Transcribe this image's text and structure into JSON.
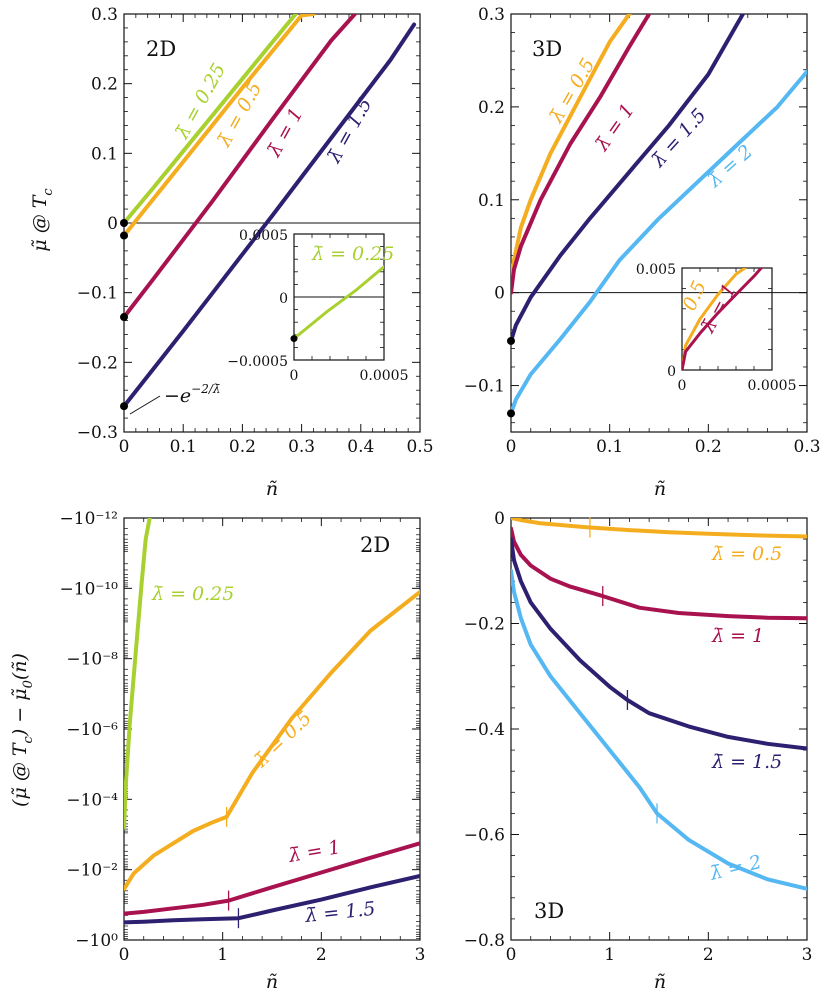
{
  "colors": {
    "lambda_0.25": "#a8d130",
    "lambda_0.5": "#f5ad20",
    "lambda_1": "#a8124f",
    "lambda_1.5": "#2e2070",
    "lambda_2": "#55b8f2",
    "axis": "#111111"
  },
  "chart_data": [
    {
      "type": "line",
      "panel": "top-left",
      "dimension_label": "2D",
      "xlabel": "ñ",
      "ylabel": "μ̃ @ T_c",
      "xlim": [
        0,
        0.5
      ],
      "ylim": [
        -0.3,
        0.3
      ],
      "xticks": [
        0,
        0.1,
        0.2,
        0.3,
        0.4,
        0.5
      ],
      "xtick_labels": [
        "0",
        "0.1",
        "0.2",
        "0.3",
        "0.4",
        "0.5"
      ],
      "yticks": [
        -0.3,
        -0.2,
        -0.1,
        0,
        0.1,
        0.2,
        0.3
      ],
      "ytick_labels": [
        "−0.3",
        "−0.2",
        "−0.1",
        "0",
        "0.1",
        "0.2",
        "0.3"
      ],
      "zero_line": true,
      "annotation": "−e^{−2/λ̄}",
      "series": [
        {
          "name": "λ̄ = 0.25",
          "color_key": "lambda_0.25",
          "x": [
            0,
            0.05,
            0.1,
            0.15,
            0.2,
            0.25,
            0.29
          ],
          "y": [
            0.0,
            0.051,
            0.103,
            0.155,
            0.207,
            0.259,
            0.3
          ],
          "start_dot": true
        },
        {
          "name": "λ̄ = 0.5",
          "color_key": "lambda_0.5",
          "x": [
            0,
            0.05,
            0.1,
            0.15,
            0.2,
            0.25,
            0.3,
            0.32
          ],
          "y": [
            -0.018,
            0.035,
            0.088,
            0.141,
            0.194,
            0.246,
            0.298,
            0.3
          ],
          "start_dot": true
        },
        {
          "name": "λ̄ = 1",
          "color_key": "lambda_1",
          "x": [
            0,
            0.05,
            0.1,
            0.15,
            0.2,
            0.25,
            0.3,
            0.35,
            0.39
          ],
          "y": [
            -0.135,
            -0.08,
            -0.024,
            0.032,
            0.09,
            0.148,
            0.205,
            0.262,
            0.3
          ],
          "start_dot": true
        },
        {
          "name": "λ̄ = 1.5",
          "color_key": "lambda_1.5",
          "x": [
            0,
            0.05,
            0.1,
            0.15,
            0.2,
            0.25,
            0.3,
            0.35,
            0.4,
            0.45,
            0.49
          ],
          "y": [
            -0.263,
            -0.209,
            -0.155,
            -0.1,
            -0.045,
            0.01,
            0.066,
            0.122,
            0.178,
            0.234,
            0.285
          ],
          "start_dot": true
        }
      ],
      "inset": {
        "xlim": [
          0,
          0.0005
        ],
        "ylim": [
          -0.0005,
          0.0005
        ],
        "xtick_labels": [
          "0",
          "0.0005"
        ],
        "ytick_labels": [
          "−0.0005",
          "0",
          "0.0005"
        ],
        "series": [
          {
            "name": "λ̄ = 0.25",
            "color_key": "lambda_0.25",
            "x": [
              0,
              0.00018,
              0.00035,
              0.0005
            ],
            "y": [
              -0.00033,
              -0.00012,
              6e-05,
              0.00024
            ],
            "start_dot": true
          }
        ]
      }
    },
    {
      "type": "line",
      "panel": "top-right",
      "dimension_label": "3D",
      "xlabel": "ñ",
      "ylabel": "",
      "xlim": [
        0,
        0.3
      ],
      "ylim": [
        -0.15,
        0.3
      ],
      "xticks": [
        0,
        0.1,
        0.2,
        0.3
      ],
      "xtick_labels": [
        "0",
        "0.1",
        "0.2",
        "0.3"
      ],
      "yticks": [
        -0.1,
        0,
        0.1,
        0.2,
        0.3
      ],
      "ytick_labels": [
        "−0.1",
        "0",
        "0.1",
        "0.2",
        "0.3"
      ],
      "zero_line": true,
      "series": [
        {
          "name": "λ̄ = 0.5",
          "color_key": "lambda_0.5",
          "x": [
            0,
            0.002,
            0.01,
            0.02,
            0.04,
            0.06,
            0.08,
            0.1,
            0.12
          ],
          "y": [
            0.0,
            0.03,
            0.07,
            0.1,
            0.15,
            0.19,
            0.23,
            0.27,
            0.3
          ],
          "start_dot": false
        },
        {
          "name": "λ̄ = 1",
          "color_key": "lambda_1",
          "x": [
            0,
            0.003,
            0.01,
            0.03,
            0.06,
            0.09,
            0.12,
            0.14
          ],
          "y": [
            0.0,
            0.025,
            0.05,
            0.1,
            0.16,
            0.21,
            0.265,
            0.3
          ],
          "start_dot": false
        },
        {
          "name": "λ̄ = 1.5",
          "color_key": "lambda_1.5",
          "x": [
            0,
            0.005,
            0.02,
            0.05,
            0.08,
            0.12,
            0.16,
            0.2,
            0.235
          ],
          "y": [
            -0.052,
            -0.035,
            -0.005,
            0.04,
            0.08,
            0.13,
            0.18,
            0.235,
            0.3
          ],
          "start_dot": true
        },
        {
          "name": "λ̄ = 2",
          "color_key": "lambda_2",
          "x": [
            0,
            0.005,
            0.02,
            0.05,
            0.08,
            0.11,
            0.15,
            0.19,
            0.23,
            0.27,
            0.3
          ],
          "y": [
            -0.13,
            -0.115,
            -0.088,
            -0.05,
            -0.01,
            0.035,
            0.08,
            0.12,
            0.16,
            0.2,
            0.238
          ],
          "start_dot": true
        }
      ],
      "inset": {
        "xlim": [
          0,
          0.0005
        ],
        "ylim": [
          0,
          0.005
        ],
        "xtick_labels": [
          "0",
          "0.0005"
        ],
        "ytick_labels": [
          "0",
          "0.005"
        ],
        "series": [
          {
            "name": "0.5",
            "color_key": "lambda_0.5",
            "x": [
              0,
              2e-05,
              0.0001,
              0.0002,
              0.0003,
              0.00035
            ],
            "y": [
              0,
              0.0012,
              0.0025,
              0.0037,
              0.0047,
              0.005
            ],
            "start_dot": false
          },
          {
            "name": "λ̄ = 1",
            "color_key": "lambda_1",
            "x": [
              0,
              2e-05,
              0.0001,
              0.0002,
              0.0003,
              0.0004,
              0.00044
            ],
            "y": [
              0,
              0.0009,
              0.0018,
              0.0028,
              0.0037,
              0.0046,
              0.005
            ],
            "start_dot": false
          }
        ]
      }
    },
    {
      "type": "line",
      "panel": "bottom-left",
      "dimension_label": "2D",
      "xlabel": "ñ",
      "ylabel": "(μ̃ @ T_c) − μ̃₀(ñ)",
      "xlim": [
        0,
        3
      ],
      "xticks": [
        0,
        1,
        2,
        3
      ],
      "xtick_labels": [
        "0",
        "1",
        "2",
        "3"
      ],
      "yscale": "symlog-negative",
      "ytick_labels": [
        "−10⁻¹²",
        "−10⁻¹⁰",
        "−10⁻⁸",
        "−10⁻⁶",
        "−10⁻⁴",
        "−10⁻²",
        "−10⁰"
      ],
      "ytick_exponents": [
        -12,
        -10,
        -8,
        -6,
        -4,
        -2,
        0
      ],
      "series": [
        {
          "name": "λ̄ = 0.25",
          "color_key": "lambda_0.25",
          "x": [
            0,
            0.02,
            0.06,
            0.12,
            0.18,
            0.22,
            0.26
          ],
          "log10_abs": [
            -3.2,
            -4.5,
            -6.2,
            -8.2,
            -10.2,
            -11.4,
            -12.0
          ]
        },
        {
          "name": "λ̄ = 0.5",
          "color_key": "lambda_0.5",
          "x": [
            0,
            0.1,
            0.3,
            0.5,
            0.7,
            0.9,
            1.04,
            1.3,
            1.7,
            2.1,
            2.5,
            3.0
          ],
          "log10_abs": [
            -1.45,
            -1.9,
            -2.4,
            -2.75,
            -3.1,
            -3.35,
            -3.5,
            -4.75,
            -6.3,
            -7.6,
            -8.8,
            -9.9
          ],
          "tick_mark_x": 1.04
        },
        {
          "name": "λ̄ = 1",
          "color_key": "lambda_1",
          "x": [
            0,
            0.2,
            0.5,
            0.8,
            1.06,
            1.5,
            2.0,
            2.5,
            3.0
          ],
          "log10_abs": [
            -0.75,
            -0.8,
            -0.9,
            -1.0,
            -1.12,
            -1.5,
            -1.92,
            -2.34,
            -2.75
          ],
          "tick_mark_x": 1.06
        },
        {
          "name": "λ̄ = 1.5",
          "color_key": "lambda_1.5",
          "x": [
            0,
            0.2,
            0.5,
            0.8,
            1.16,
            1.5,
            2.0,
            2.5,
            3.0
          ],
          "log10_abs": [
            -0.5,
            -0.52,
            -0.56,
            -0.59,
            -0.62,
            -0.84,
            -1.15,
            -1.5,
            -1.82
          ],
          "tick_mark_x": 1.16
        }
      ]
    },
    {
      "type": "line",
      "panel": "bottom-right",
      "dimension_label": "3D",
      "xlabel": "ñ",
      "ylabel": "",
      "xlim": [
        0,
        3
      ],
      "ylim": [
        -0.8,
        0
      ],
      "xticks": [
        0,
        1,
        2,
        3
      ],
      "xtick_labels": [
        "0",
        "1",
        "2",
        "3"
      ],
      "yticks": [
        -0.8,
        -0.6,
        -0.4,
        -0.2,
        0
      ],
      "ytick_labels": [
        "−0.8",
        "−0.6",
        "−0.4",
        "−0.2",
        "0"
      ],
      "series": [
        {
          "name": "λ̄ = 0.5",
          "color_key": "lambda_0.5",
          "x": [
            0,
            0.1,
            0.3,
            0.6,
            0.8,
            1.2,
            1.6,
            2.0,
            2.5,
            3.0
          ],
          "y": [
            0.0,
            -0.004,
            -0.01,
            -0.015,
            -0.018,
            -0.023,
            -0.027,
            -0.03,
            -0.033,
            -0.035
          ],
          "tick_mark_x": 0.8
        },
        {
          "name": "λ̄ = 1",
          "color_key": "lambda_1",
          "x": [
            0,
            0.03,
            0.1,
            0.2,
            0.4,
            0.6,
            0.93,
            1.3,
            1.7,
            2.2,
            2.6,
            3.0
          ],
          "y": [
            -0.02,
            -0.045,
            -0.07,
            -0.09,
            -0.115,
            -0.13,
            -0.148,
            -0.17,
            -0.18,
            -0.186,
            -0.189,
            -0.19
          ],
          "tick_mark_x": 0.93
        },
        {
          "name": "λ̄ = 1.5",
          "color_key": "lambda_1.5",
          "x": [
            0,
            0.03,
            0.1,
            0.2,
            0.4,
            0.7,
            1.0,
            1.18,
            1.4,
            1.8,
            2.2,
            2.6,
            3.0
          ],
          "y": [
            -0.04,
            -0.08,
            -0.12,
            -0.16,
            -0.21,
            -0.27,
            -0.32,
            -0.345,
            -0.37,
            -0.395,
            -0.415,
            -0.428,
            -0.437
          ],
          "tick_mark_x": 1.18
        },
        {
          "name": "λ̄ = 2",
          "color_key": "lambda_2",
          "x": [
            0,
            0.03,
            0.1,
            0.2,
            0.4,
            0.7,
            1.0,
            1.3,
            1.48,
            1.8,
            2.2,
            2.6,
            3.0
          ],
          "y": [
            -0.1,
            -0.14,
            -0.19,
            -0.24,
            -0.3,
            -0.37,
            -0.44,
            -0.51,
            -0.56,
            -0.61,
            -0.655,
            -0.685,
            -0.703
          ],
          "tick_mark_x": 1.48
        }
      ]
    }
  ],
  "labels": {
    "tl_l025": "λ̄ = 0.25",
    "tl_l05": "λ̄ = 0.5",
    "tl_l1": "λ̄ = 1",
    "tl_l15": "λ̄ = 1.5",
    "tl_inset_l025": "λ̄ = 0.25",
    "tl_annotation": "−e",
    "tl_annotation_sup": "−2/λ̄",
    "tr_l05": "λ̄ = 0.5",
    "tr_l1": "λ̄ = 1",
    "tr_l15": "λ̄ = 1.5",
    "tr_l2": "λ̄ = 2",
    "tr_inset_l05": "0.5",
    "tr_inset_l1": "λ̄ = 1",
    "bl_l025": "λ̄ = 0.25",
    "bl_l05": "λ̄ = 0.5",
    "bl_l1": "λ̄ = 1",
    "bl_l15": "λ̄ = 1.5",
    "br_l05": "λ̄ = 0.5",
    "br_l1": "λ̄ = 1",
    "br_l15": "λ̄ = 1.5",
    "br_l2": "λ̄ = 2",
    "ylabel_top": "μ̃ @ T",
    "ylabel_top_sub": "c",
    "ylabel_bottom": "(μ̃ @ T",
    "ylabel_bottom_sub": "c",
    "ylabel_bottom_rest": ") − μ̃",
    "ylabel_bottom_sub0": "0",
    "ylabel_bottom_end": "(ñ)",
    "xlabel": "ñ",
    "dim_2d": "2D",
    "dim_3d": "3D"
  }
}
